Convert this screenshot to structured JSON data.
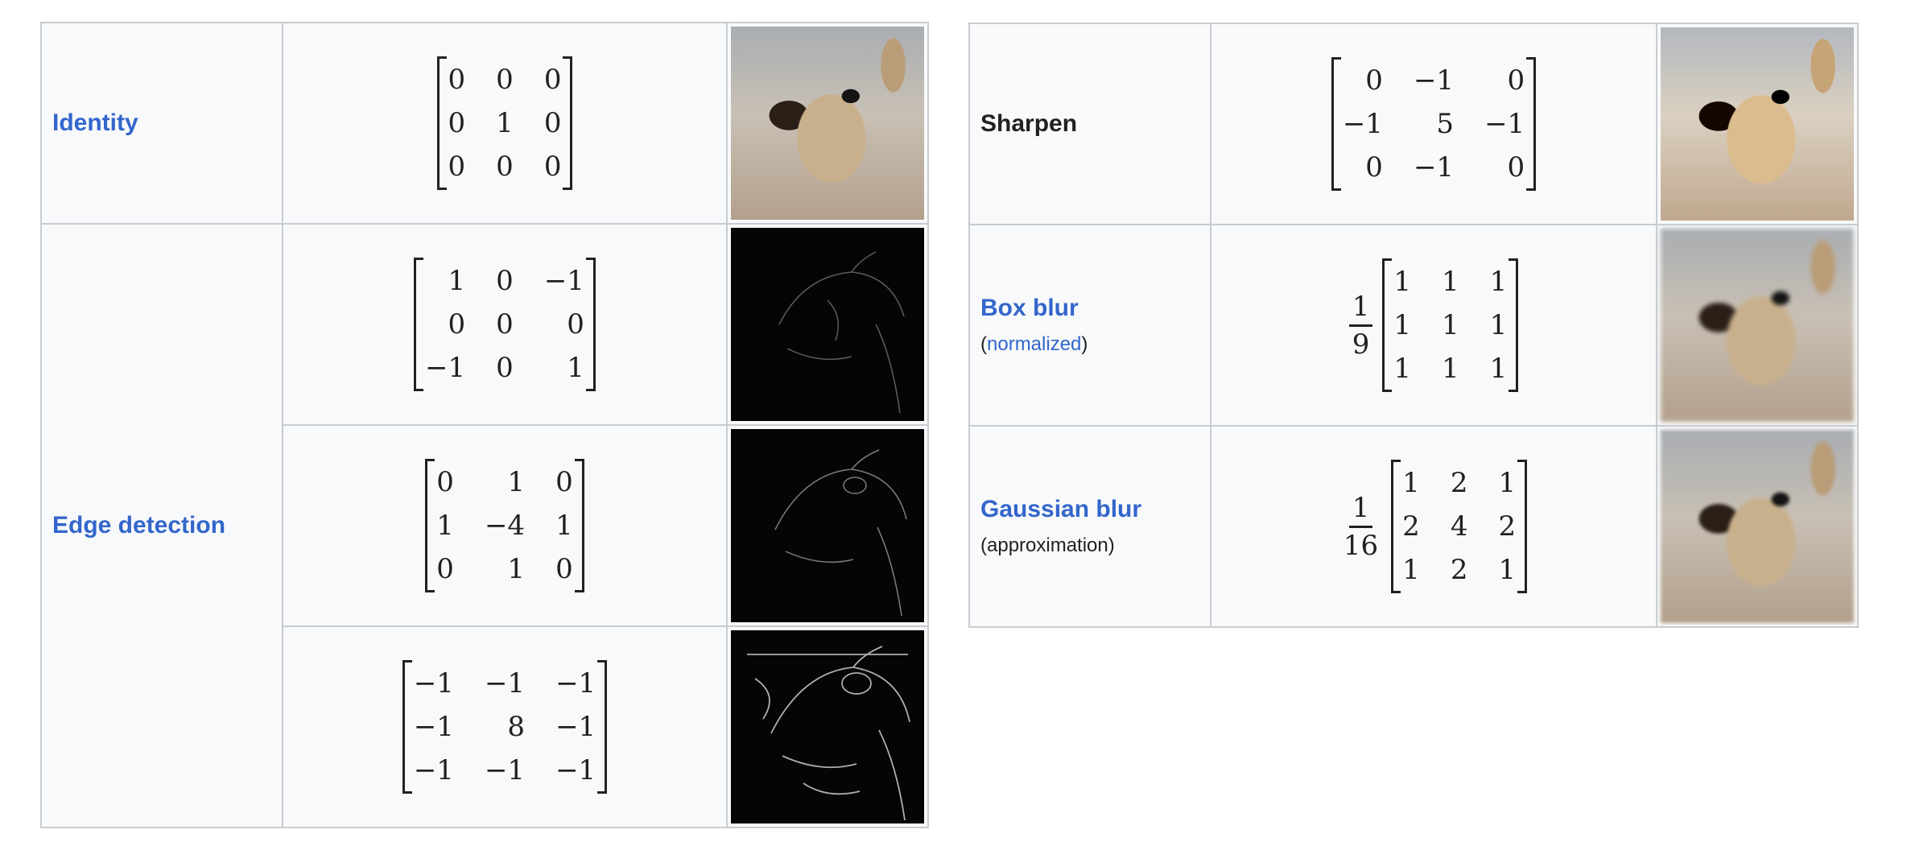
{
  "left": {
    "rows": [
      {
        "name": "Identity",
        "matrix": [
          [
            "0",
            "0",
            "0"
          ],
          [
            "0",
            "1",
            "0"
          ],
          [
            "0",
            "0",
            "0"
          ]
        ]
      },
      {
        "name": "Edge detection",
        "matrices": [
          [
            [
              "1",
              "0",
              "−1"
            ],
            [
              "0",
              "0",
              "0"
            ],
            [
              "−1",
              "0",
              "1"
            ]
          ],
          [
            [
              "0",
              "1",
              "0"
            ],
            [
              "1",
              "−4",
              "1"
            ],
            [
              "0",
              "1",
              "0"
            ]
          ],
          [
            [
              "−1",
              "−1",
              "−1"
            ],
            [
              "−1",
              "8",
              "−1"
            ],
            [
              "−1",
              "−1",
              "−1"
            ]
          ]
        ]
      }
    ]
  },
  "right": {
    "rows": [
      {
        "name": "Sharpen",
        "matrix": [
          [
            "0",
            "−1",
            "0"
          ],
          [
            "−1",
            "5",
            "−1"
          ],
          [
            "0",
            "−1",
            "0"
          ]
        ]
      },
      {
        "name": "Box blur",
        "note_open": "(",
        "note_link": "normalized",
        "note_close": ")",
        "coef_num": "1",
        "coef_den": "9",
        "matrix": [
          [
            "1",
            "1",
            "1"
          ],
          [
            "1",
            "1",
            "1"
          ],
          [
            "1",
            "1",
            "1"
          ]
        ]
      },
      {
        "name": "Gaussian blur",
        "note": "(approximation)",
        "coef_num": "1",
        "coef_den": "16",
        "matrix": [
          [
            "1",
            "2",
            "1"
          ],
          [
            "2",
            "4",
            "2"
          ],
          [
            "1",
            "2",
            "1"
          ]
        ]
      }
    ]
  },
  "colors": {
    "link": "#3366cc",
    "text": "#202122",
    "border": "#c8ccd1",
    "cell_bg": "#f8f9fa"
  }
}
